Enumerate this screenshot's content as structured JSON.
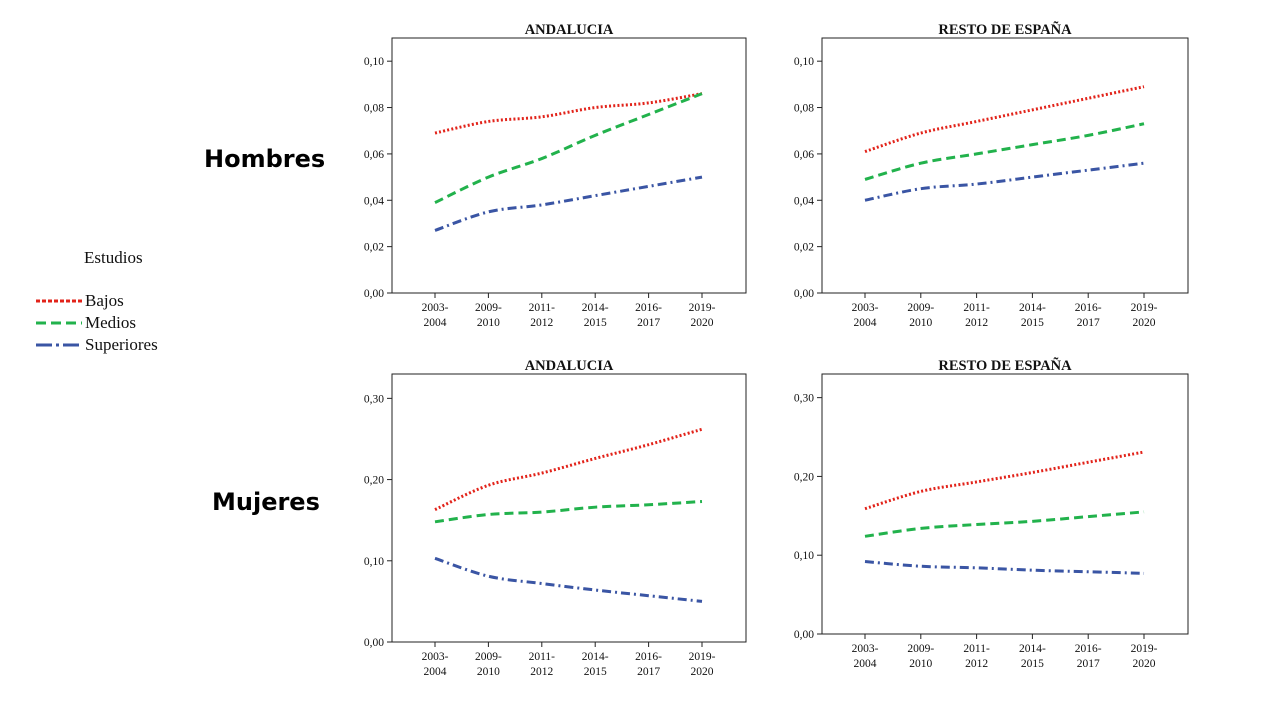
{
  "row_labels": {
    "top": "Hombres",
    "bottom": "Mujeres"
  },
  "legend": {
    "title": "Estudios",
    "placement": "left",
    "items": [
      {
        "name": "Bajos",
        "color": "#e2231a",
        "style": "dotted"
      },
      {
        "name": "Medios",
        "color": "#22b24c",
        "style": "dashed"
      },
      {
        "name": "Superiores",
        "color": "#3a55a4",
        "style": "dashdot"
      }
    ]
  },
  "chart_data": [
    {
      "type": "line",
      "title": "ANDALUCIA",
      "categories": [
        "2003-2004",
        "2009-2010",
        "2011-2012",
        "2014-2015",
        "2016-2017",
        "2019-2020"
      ],
      "ylim": [
        0,
        0.11
      ],
      "yticks": [
        "0,00",
        "0,02",
        "0,04",
        "0,06",
        "0,08",
        "0,10"
      ],
      "grid": false,
      "series": [
        {
          "name": "Bajos",
          "values": [
            0.069,
            0.074,
            0.076,
            0.08,
            0.082,
            0.086
          ]
        },
        {
          "name": "Medios",
          "values": [
            0.039,
            0.05,
            0.058,
            0.068,
            0.077,
            0.086
          ]
        },
        {
          "name": "Superiores",
          "values": [
            0.027,
            0.035,
            0.038,
            0.042,
            0.046,
            0.05
          ]
        }
      ]
    },
    {
      "type": "line",
      "title": "RESTO DE ESPAÑA",
      "categories": [
        "2003-2004",
        "2009-2010",
        "2011-2012",
        "2014-2015",
        "2016-2017",
        "2019-2020"
      ],
      "ylim": [
        0,
        0.11
      ],
      "yticks": [
        "0,00",
        "0,02",
        "0,04",
        "0,06",
        "0,08",
        "0,10"
      ],
      "grid": false,
      "series": [
        {
          "name": "Bajos",
          "values": [
            0.061,
            0.069,
            0.074,
            0.079,
            0.084,
            0.089
          ]
        },
        {
          "name": "Medios",
          "values": [
            0.049,
            0.056,
            0.06,
            0.064,
            0.068,
            0.073
          ]
        },
        {
          "name": "Superiores",
          "values": [
            0.04,
            0.045,
            0.047,
            0.05,
            0.053,
            0.056
          ]
        }
      ]
    },
    {
      "type": "line",
      "title": "ANDALUCIA",
      "categories": [
        "2003-2004",
        "2009-2010",
        "2011-2012",
        "2014-2015",
        "2016-2017",
        "2019-2020"
      ],
      "ylim": [
        0,
        0.33
      ],
      "yticks": [
        "0,00",
        "0,10",
        "0,20",
        "0,30"
      ],
      "grid": false,
      "series": [
        {
          "name": "Bajos",
          "values": [
            0.163,
            0.193,
            0.208,
            0.226,
            0.243,
            0.262
          ]
        },
        {
          "name": "Medios",
          "values": [
            0.148,
            0.157,
            0.16,
            0.166,
            0.169,
            0.173
          ]
        },
        {
          "name": "Superiores",
          "values": [
            0.103,
            0.081,
            0.072,
            0.064,
            0.057,
            0.05
          ]
        }
      ]
    },
    {
      "type": "line",
      "title": "RESTO DE ESPAÑA",
      "categories": [
        "2003-2004",
        "2009-2010",
        "2011-2012",
        "2014-2015",
        "2016-2017",
        "2019-2020"
      ],
      "ylim": [
        0,
        0.33
      ],
      "yticks": [
        "0,00",
        "0,10",
        "0,20",
        "0,30"
      ],
      "grid": false,
      "series": [
        {
          "name": "Bajos",
          "values": [
            0.159,
            0.181,
            0.193,
            0.205,
            0.218,
            0.231
          ]
        },
        {
          "name": "Medios",
          "values": [
            0.124,
            0.134,
            0.139,
            0.143,
            0.149,
            0.155
          ]
        },
        {
          "name": "Superiores",
          "values": [
            0.092,
            0.086,
            0.084,
            0.081,
            0.079,
            0.077
          ]
        }
      ]
    }
  ]
}
